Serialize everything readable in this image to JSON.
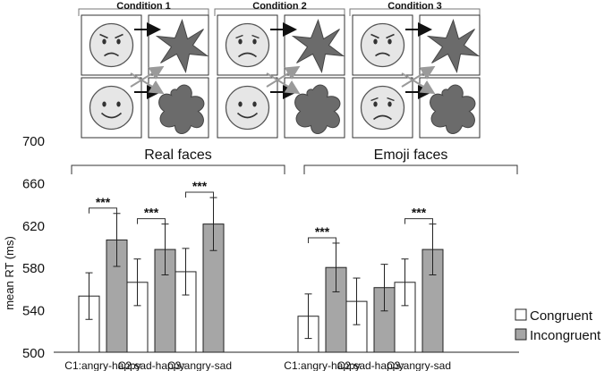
{
  "conditions": [
    {
      "label": "Condition 1",
      "top_face": "angry",
      "bottom_face": "happy"
    },
    {
      "label": "Condition 2",
      "top_face": "sad",
      "bottom_face": "happy"
    },
    {
      "label": "Condition 3",
      "top_face": "angry",
      "bottom_face": "sad"
    }
  ],
  "chart_data": {
    "type": "bar",
    "ylabel": "mean RT (ms)",
    "ylim": [
      500,
      700
    ],
    "yticks": [
      500,
      540,
      580,
      620,
      660,
      700
    ],
    "groups": [
      {
        "name": "Real faces",
        "categories": [
          "C1:angry-happy",
          "C2:sad-happy",
          "C3:angry-sad"
        ],
        "congruent": [
          553,
          566,
          576
        ],
        "congruent_err": [
          22,
          22,
          22
        ],
        "incongruent": [
          606,
          597,
          621
        ],
        "incongruent_err": [
          25,
          24,
          25
        ],
        "significance": [
          "***",
          "***",
          "***"
        ]
      },
      {
        "name": "Emoji faces",
        "categories": [
          "C1:angry-happy",
          "C2:sad-happy",
          "C3:angry-sad"
        ],
        "congruent": [
          534,
          548,
          566
        ],
        "congruent_err": [
          21,
          22,
          22
        ],
        "incongruent": [
          580,
          561,
          597
        ],
        "incongruent_err": [
          23,
          22,
          24
        ],
        "significance": [
          "***",
          "",
          "***"
        ]
      }
    ],
    "series": [
      {
        "name": "Congruent",
        "color": "#ffffff"
      },
      {
        "name": "Incongruent",
        "color": "#a6a6a6"
      }
    ],
    "legend": "bottom-right",
    "grid": false
  }
}
